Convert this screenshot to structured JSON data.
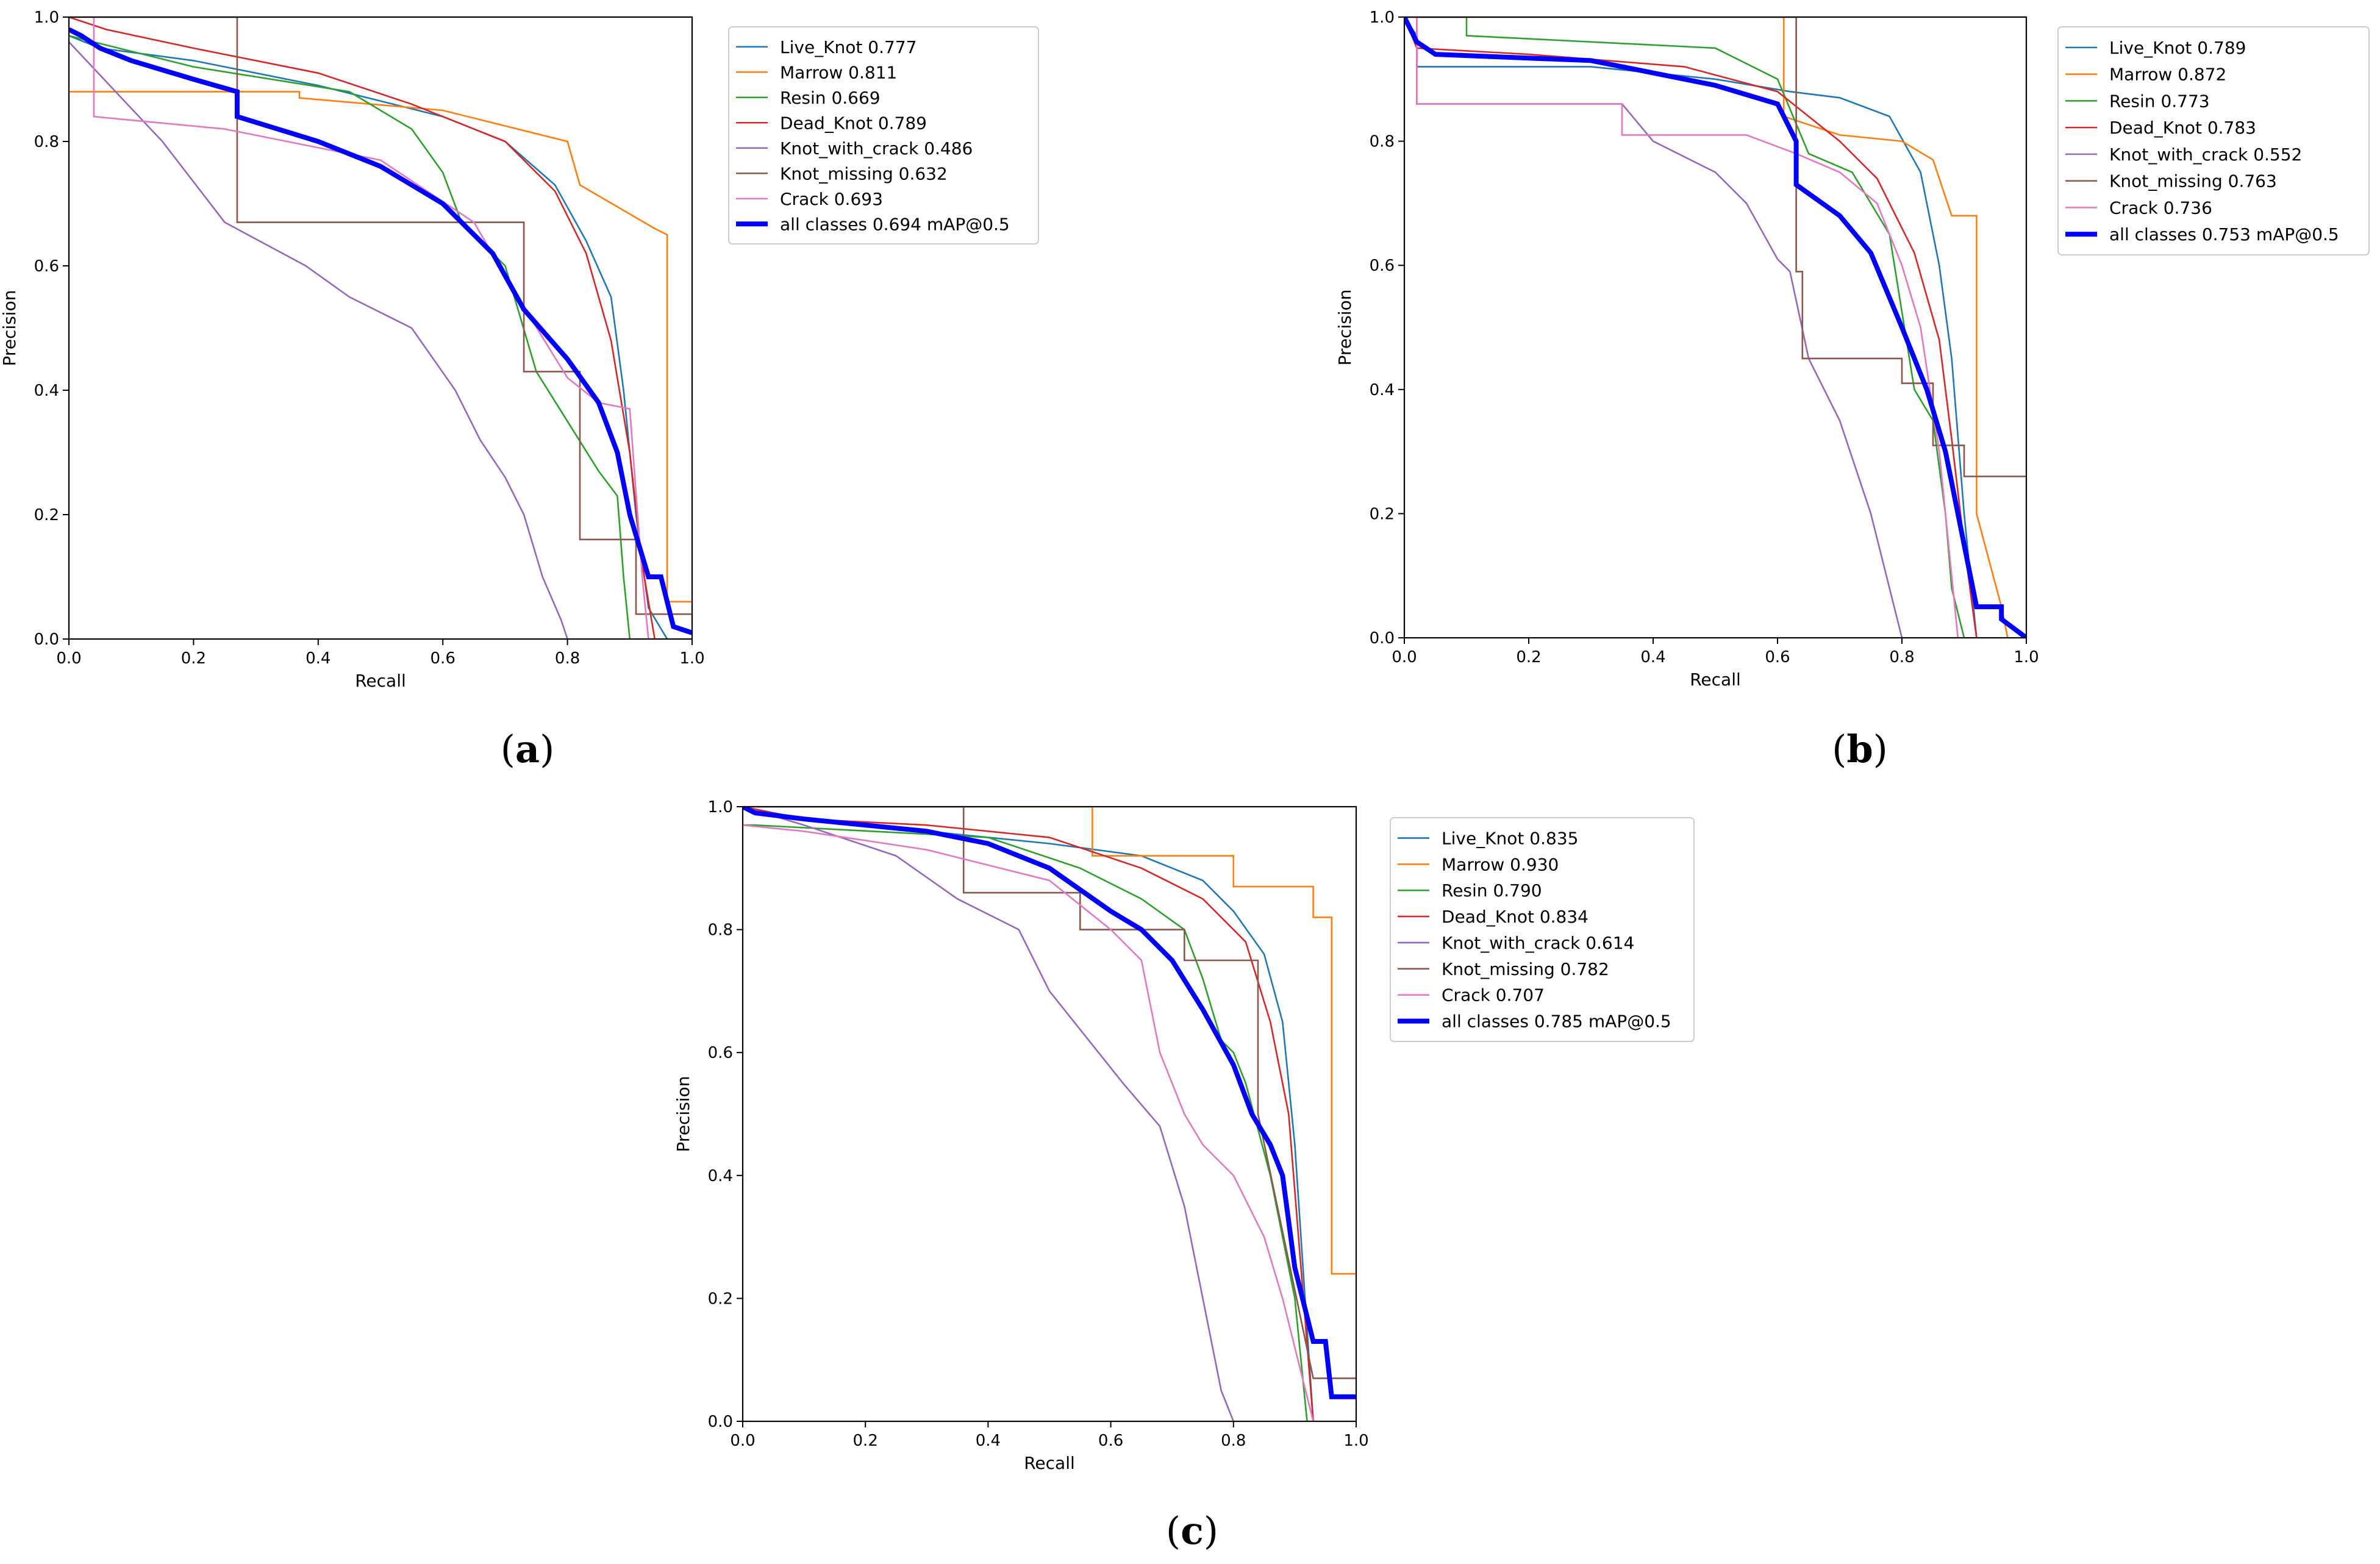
{
  "colors": {
    "Live_Knot": "#1f77b4",
    "Marrow": "#ff7f0e",
    "Resin": "#2ca02c",
    "Dead_Knot": "#d62728",
    "Knot_with_crack": "#9467bd",
    "Knot_missing": "#8c564b",
    "Crack": "#e377c2",
    "all": "#0000ff"
  },
  "chart_data": [
    {
      "type": "line",
      "caption": "a",
      "xlabel": "Recall",
      "ylabel": "Precision",
      "xlim": [
        0,
        1
      ],
      "ylim": [
        0,
        1
      ],
      "xticks": [
        "0.0",
        "0.2",
        "0.4",
        "0.6",
        "0.8",
        "1.0"
      ],
      "yticks": [
        "0.0",
        "0.2",
        "0.4",
        "0.6",
        "0.8",
        "1.0"
      ],
      "grid": false,
      "legend_position": "outside-right",
      "series": [
        {
          "name": "Live_Knot 0.777",
          "key": "Live_Knot",
          "x": [
            0,
            0.05,
            0.2,
            0.4,
            0.6,
            0.7,
            0.78,
            0.83,
            0.87,
            0.89,
            0.91,
            0.93,
            0.96
          ],
          "y": [
            0.97,
            0.95,
            0.93,
            0.89,
            0.84,
            0.8,
            0.73,
            0.64,
            0.55,
            0.4,
            0.2,
            0.05,
            0.0
          ]
        },
        {
          "name": "Marrow 0.811",
          "key": "Marrow",
          "x": [
            0,
            0.37,
            0.37,
            0.6,
            0.8,
            0.82,
            0.94,
            0.96,
            0.96,
            1.0
          ],
          "y": [
            0.88,
            0.88,
            0.87,
            0.85,
            0.8,
            0.73,
            0.66,
            0.65,
            0.06,
            0.06
          ]
        },
        {
          "name": "Resin 0.669",
          "key": "Resin",
          "x": [
            0,
            0.2,
            0.45,
            0.55,
            0.6,
            0.63,
            0.7,
            0.75,
            0.8,
            0.85,
            0.88,
            0.89,
            0.9
          ],
          "y": [
            0.97,
            0.92,
            0.88,
            0.82,
            0.75,
            0.67,
            0.6,
            0.43,
            0.35,
            0.27,
            0.23,
            0.1,
            0.0
          ]
        },
        {
          "name": "Dead_Knot 0.789",
          "key": "Dead_Knot",
          "x": [
            0,
            0.06,
            0.2,
            0.4,
            0.55,
            0.7,
            0.78,
            0.83,
            0.87,
            0.9,
            0.92,
            0.94
          ],
          "y": [
            1.0,
            0.98,
            0.95,
            0.91,
            0.86,
            0.8,
            0.72,
            0.62,
            0.48,
            0.3,
            0.12,
            0.0
          ]
        },
        {
          "name": "Knot_with_crack 0.486",
          "key": "Knot_with_crack",
          "x": [
            0,
            0.15,
            0.25,
            0.38,
            0.45,
            0.55,
            0.62,
            0.66,
            0.7,
            0.73,
            0.76,
            0.79,
            0.8
          ],
          "y": [
            0.96,
            0.8,
            0.67,
            0.6,
            0.55,
            0.5,
            0.4,
            0.32,
            0.26,
            0.2,
            0.1,
            0.03,
            0.0
          ]
        },
        {
          "name": "Knot_missing 0.632",
          "key": "Knot_missing",
          "x": [
            0,
            0.27,
            0.27,
            0.73,
            0.73,
            0.82,
            0.82,
            0.91,
            0.91,
            0.94,
            1.0
          ],
          "y": [
            1.0,
            1.0,
            0.67,
            0.67,
            0.43,
            0.43,
            0.16,
            0.16,
            0.04,
            0.04,
            0.04
          ]
        },
        {
          "name": "Crack 0.693",
          "key": "Crack",
          "x": [
            0,
            0.04,
            0.04,
            0.25,
            0.5,
            0.65,
            0.72,
            0.8,
            0.85,
            0.9,
            0.92,
            0.93
          ],
          "y": [
            1.0,
            1.0,
            0.84,
            0.82,
            0.77,
            0.67,
            0.55,
            0.42,
            0.38,
            0.37,
            0.1,
            0.0
          ]
        },
        {
          "name": "all classes 0.694 mAP@0.5",
          "key": "all",
          "x": [
            0,
            0.02,
            0.05,
            0.1,
            0.2,
            0.27,
            0.27,
            0.4,
            0.5,
            0.6,
            0.68,
            0.73,
            0.8,
            0.85,
            0.88,
            0.9,
            0.93,
            0.95,
            0.97,
            1.0
          ],
          "y": [
            0.98,
            0.97,
            0.95,
            0.93,
            0.9,
            0.88,
            0.84,
            0.8,
            0.76,
            0.7,
            0.62,
            0.53,
            0.45,
            0.38,
            0.3,
            0.2,
            0.1,
            0.1,
            0.02,
            0.01
          ]
        }
      ]
    },
    {
      "type": "line",
      "caption": "b",
      "xlabel": "Recall",
      "ylabel": "Precision",
      "xlim": [
        0,
        1
      ],
      "ylim": [
        0,
        1
      ],
      "xticks": [
        "0.0",
        "0.2",
        "0.4",
        "0.6",
        "0.8",
        "1.0"
      ],
      "yticks": [
        "0.0",
        "0.2",
        "0.4",
        "0.6",
        "0.8",
        "1.0"
      ],
      "grid": false,
      "legend_position": "outside-right",
      "series": [
        {
          "name": "Live_Knot 0.789",
          "key": "Live_Knot",
          "x": [
            0,
            0.02,
            0.02,
            0.3,
            0.5,
            0.62,
            0.7,
            0.78,
            0.83,
            0.86,
            0.88,
            0.9,
            0.92
          ],
          "y": [
            1.0,
            0.97,
            0.92,
            0.92,
            0.9,
            0.88,
            0.87,
            0.84,
            0.75,
            0.6,
            0.45,
            0.2,
            0.0
          ]
        },
        {
          "name": "Marrow 0.872",
          "key": "Marrow",
          "x": [
            0,
            0.61,
            0.61,
            0.7,
            0.8,
            0.85,
            0.88,
            0.92,
            0.92,
            0.96,
            0.97
          ],
          "y": [
            1.0,
            1.0,
            0.84,
            0.81,
            0.8,
            0.77,
            0.68,
            0.68,
            0.2,
            0.05,
            0.0
          ]
        },
        {
          "name": "Resin 0.773",
          "key": "Resin",
          "x": [
            0,
            0.1,
            0.1,
            0.5,
            0.6,
            0.65,
            0.72,
            0.78,
            0.82,
            0.85,
            0.87,
            0.88,
            0.9
          ],
          "y": [
            1.0,
            1.0,
            0.97,
            0.95,
            0.9,
            0.78,
            0.75,
            0.65,
            0.4,
            0.35,
            0.2,
            0.08,
            0.0
          ]
        },
        {
          "name": "Dead_Knot 0.783",
          "key": "Dead_Knot",
          "x": [
            0,
            0.02,
            0.2,
            0.45,
            0.6,
            0.7,
            0.76,
            0.82,
            0.86,
            0.88,
            0.9,
            0.92
          ],
          "y": [
            1.0,
            0.95,
            0.94,
            0.92,
            0.88,
            0.8,
            0.74,
            0.62,
            0.48,
            0.32,
            0.15,
            0.0
          ]
        },
        {
          "name": "Knot_with_crack 0.552",
          "key": "Knot_with_crack",
          "x": [
            0,
            0.02,
            0.02,
            0.35,
            0.4,
            0.5,
            0.55,
            0.6,
            0.62,
            0.65,
            0.7,
            0.75,
            0.78,
            0.8
          ],
          "y": [
            1.0,
            1.0,
            0.86,
            0.86,
            0.8,
            0.75,
            0.7,
            0.61,
            0.59,
            0.45,
            0.35,
            0.2,
            0.08,
            0.0
          ]
        },
        {
          "name": "Knot_missing 0.763",
          "key": "Knot_missing",
          "x": [
            0,
            0.63,
            0.63,
            0.64,
            0.64,
            0.8,
            0.8,
            0.85,
            0.85,
            0.9,
            0.9,
            1.0
          ],
          "y": [
            1.0,
            1.0,
            0.59,
            0.59,
            0.45,
            0.45,
            0.41,
            0.41,
            0.31,
            0.31,
            0.26,
            0.26
          ]
        },
        {
          "name": "Crack 0.736",
          "key": "Crack",
          "x": [
            0,
            0.02,
            0.02,
            0.35,
            0.35,
            0.55,
            0.63,
            0.7,
            0.76,
            0.8,
            0.83,
            0.86,
            0.88,
            0.89
          ],
          "y": [
            1.0,
            1.0,
            0.86,
            0.86,
            0.81,
            0.81,
            0.78,
            0.75,
            0.7,
            0.6,
            0.5,
            0.3,
            0.1,
            0.0
          ]
        },
        {
          "name": "all classes 0.753 mAP@0.5",
          "key": "all",
          "x": [
            0,
            0.02,
            0.05,
            0.3,
            0.35,
            0.5,
            0.6,
            0.63,
            0.63,
            0.7,
            0.75,
            0.8,
            0.84,
            0.87,
            0.9,
            0.92,
            0.96,
            0.96,
            1.0
          ],
          "y": [
            1.0,
            0.96,
            0.94,
            0.93,
            0.92,
            0.89,
            0.86,
            0.8,
            0.73,
            0.68,
            0.62,
            0.5,
            0.4,
            0.3,
            0.15,
            0.05,
            0.05,
            0.03,
            0.0
          ]
        }
      ]
    },
    {
      "type": "line",
      "caption": "c",
      "xlabel": "Recall",
      "ylabel": "Precision",
      "xlim": [
        0,
        1
      ],
      "ylim": [
        0,
        1
      ],
      "xticks": [
        "0.0",
        "0.2",
        "0.4",
        "0.6",
        "0.8",
        "1.0"
      ],
      "yticks": [
        "0.0",
        "0.2",
        "0.4",
        "0.6",
        "0.8",
        "1.0"
      ],
      "grid": false,
      "legend_position": "outside-right",
      "series": [
        {
          "name": "Live_Knot 0.835",
          "key": "Live_Knot",
          "x": [
            0,
            0.1,
            0.3,
            0.5,
            0.65,
            0.75,
            0.8,
            0.85,
            0.88,
            0.9,
            0.92,
            0.93
          ],
          "y": [
            1.0,
            0.98,
            0.96,
            0.94,
            0.92,
            0.88,
            0.83,
            0.76,
            0.65,
            0.45,
            0.15,
            0.0
          ]
        },
        {
          "name": "Marrow 0.930",
          "key": "Marrow",
          "x": [
            0,
            0.57,
            0.57,
            0.7,
            0.8,
            0.8,
            0.93,
            0.93,
            0.96,
            0.96,
            1.0
          ],
          "y": [
            1.0,
            1.0,
            0.92,
            0.92,
            0.92,
            0.87,
            0.87,
            0.82,
            0.82,
            0.24,
            0.24
          ]
        },
        {
          "name": "Resin 0.790",
          "key": "Resin",
          "x": [
            0,
            0.02,
            0.4,
            0.55,
            0.65,
            0.72,
            0.75,
            0.78,
            0.8,
            0.82,
            0.86,
            0.9,
            0.92
          ],
          "y": [
            0.97,
            0.97,
            0.95,
            0.9,
            0.85,
            0.8,
            0.72,
            0.62,
            0.6,
            0.55,
            0.4,
            0.2,
            0.0
          ]
        },
        {
          "name": "Dead_Knot 0.834",
          "key": "Dead_Knot",
          "x": [
            0,
            0.1,
            0.3,
            0.5,
            0.65,
            0.75,
            0.82,
            0.86,
            0.89,
            0.91,
            0.93
          ],
          "y": [
            1.0,
            0.98,
            0.97,
            0.95,
            0.9,
            0.85,
            0.78,
            0.65,
            0.5,
            0.25,
            0.0
          ]
        },
        {
          "name": "Knot_with_crack 0.614",
          "key": "Knot_with_crack",
          "x": [
            0,
            0.1,
            0.25,
            0.35,
            0.45,
            0.5,
            0.58,
            0.62,
            0.68,
            0.72,
            0.75,
            0.78,
            0.8
          ],
          "y": [
            1.0,
            0.97,
            0.92,
            0.85,
            0.8,
            0.7,
            0.6,
            0.55,
            0.48,
            0.35,
            0.2,
            0.05,
            0.0
          ]
        },
        {
          "name": "Knot_missing 0.782",
          "key": "Knot_missing",
          "x": [
            0,
            0.36,
            0.36,
            0.55,
            0.55,
            0.72,
            0.72,
            0.84,
            0.84,
            0.93,
            1.0
          ],
          "y": [
            1.0,
            1.0,
            0.86,
            0.86,
            0.8,
            0.8,
            0.75,
            0.75,
            0.5,
            0.07,
            0.07
          ]
        },
        {
          "name": "Crack 0.707",
          "key": "Crack",
          "x": [
            0,
            0.1,
            0.3,
            0.5,
            0.6,
            0.65,
            0.68,
            0.72,
            0.75,
            0.8,
            0.85,
            0.88,
            0.91,
            0.93
          ],
          "y": [
            0.97,
            0.96,
            0.93,
            0.88,
            0.8,
            0.75,
            0.6,
            0.5,
            0.45,
            0.4,
            0.3,
            0.2,
            0.08,
            0.0
          ]
        },
        {
          "name": "all classes 0.785 mAP@0.5",
          "key": "all",
          "x": [
            0,
            0.02,
            0.1,
            0.3,
            0.4,
            0.5,
            0.6,
            0.65,
            0.7,
            0.75,
            0.8,
            0.83,
            0.86,
            0.88,
            0.9,
            0.93,
            0.95,
            0.96,
            1.0
          ],
          "y": [
            1.0,
            0.99,
            0.98,
            0.96,
            0.94,
            0.9,
            0.83,
            0.8,
            0.75,
            0.67,
            0.58,
            0.5,
            0.45,
            0.4,
            0.25,
            0.13,
            0.13,
            0.04,
            0.04
          ]
        }
      ]
    }
  ]
}
